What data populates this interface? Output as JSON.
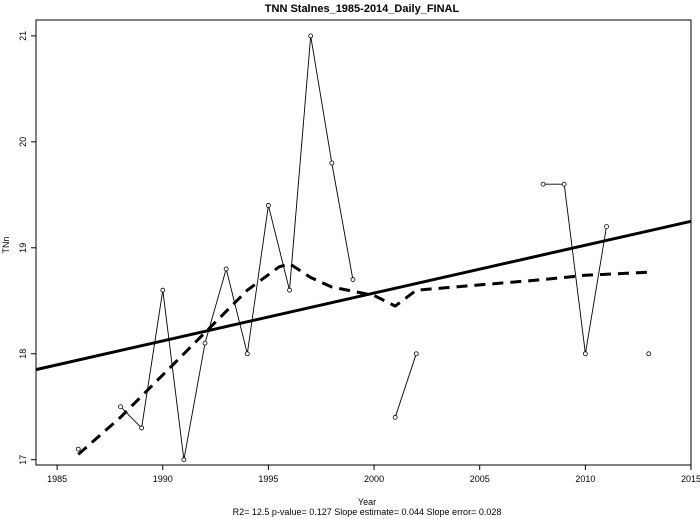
{
  "chart_data": {
    "type": "line",
    "title": "TNN   Stalnes_1985-2014_Daily_FINAL",
    "xlabel": "Year",
    "ylabel": "TNn",
    "xlim": [
      1984,
      2015
    ],
    "ylim": [
      16.95,
      21.15
    ],
    "x_ticks": [
      1985,
      1990,
      1995,
      2000,
      2005,
      2010,
      2015
    ],
    "y_ticks": [
      17,
      18,
      19,
      20,
      21
    ],
    "grid": false,
    "series": [
      {
        "style": "thin-line-with-open-circles",
        "segments": [
          [
            [
              1986,
              17.1
            ]
          ],
          [
            [
              1988,
              17.5
            ],
            [
              1989,
              17.3
            ],
            [
              1990,
              18.6
            ],
            [
              1991,
              17.0
            ],
            [
              1992,
              18.1
            ],
            [
              1993,
              18.8
            ],
            [
              1994,
              18.0
            ],
            [
              1995,
              19.4
            ],
            [
              1996,
              18.6
            ],
            [
              1997,
              21.0
            ],
            [
              1998,
              19.8
            ],
            [
              1999,
              18.7
            ]
          ],
          [
            [
              2001,
              17.4
            ],
            [
              2002,
              18.0
            ]
          ],
          [
            [
              2008,
              19.6
            ],
            [
              2009,
              19.6
            ],
            [
              2010,
              18.0
            ],
            [
              2011,
              19.2
            ]
          ],
          [
            [
              2013,
              18.0
            ]
          ]
        ]
      },
      {
        "style": "thick-solid-trend-line",
        "points": [
          [
            1984,
            17.85
          ],
          [
            2015,
            19.25
          ]
        ]
      },
      {
        "style": "thick-dashed-smooth-line",
        "points": [
          [
            1986,
            17.05
          ],
          [
            1988,
            17.4
          ],
          [
            1990,
            17.8
          ],
          [
            1992,
            18.2
          ],
          [
            1994,
            18.6
          ],
          [
            1995.5,
            18.82
          ],
          [
            1996,
            18.85
          ],
          [
            1997,
            18.72
          ],
          [
            1998,
            18.63
          ],
          [
            2000,
            18.55
          ],
          [
            2001,
            18.45
          ],
          [
            2002,
            18.6
          ],
          [
            2005,
            18.65
          ],
          [
            2008,
            18.7
          ],
          [
            2010,
            18.74
          ],
          [
            2013,
            18.77
          ]
        ]
      }
    ],
    "footer": "R2= 12.5  p-value= 0.127  Slope estimate= 0.044  Slope error= 0.028"
  }
}
